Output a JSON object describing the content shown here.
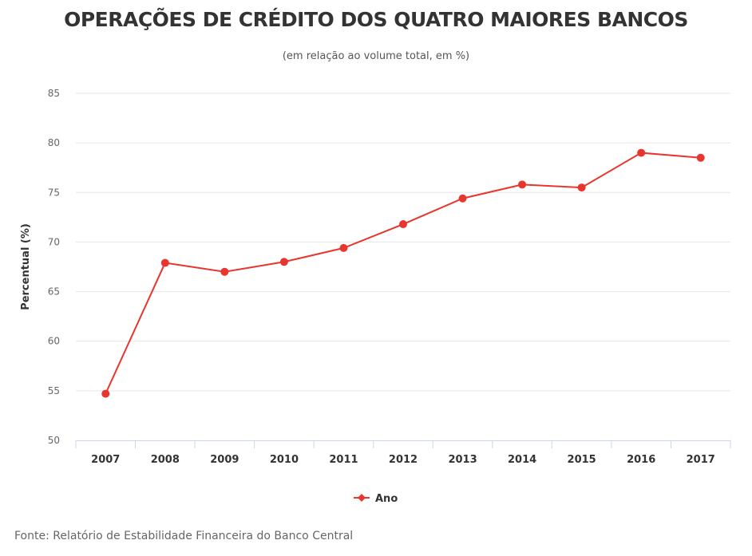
{
  "chart_data": {
    "type": "line",
    "title": "OPERAÇÕES DE CRÉDITO DOS QUATRO MAIORES BANCOS",
    "subtitle": "(em relação ao volume total, em %)",
    "xlabel": "",
    "ylabel": "Percentual (%)",
    "ylim": [
      50,
      85
    ],
    "yticks": [
      50,
      55,
      60,
      65,
      70,
      75,
      80,
      85
    ],
    "grid": true,
    "categories": [
      "2007",
      "2008",
      "2009",
      "2010",
      "2011",
      "2012",
      "2013",
      "2014",
      "2015",
      "2016",
      "2017"
    ],
    "series": [
      {
        "name": "Ano",
        "color": "#e8362e",
        "values": [
          54.7,
          67.9,
          67.0,
          68.0,
          69.4,
          71.8,
          74.4,
          75.8,
          75.5,
          79.0,
          78.5
        ]
      }
    ],
    "legend_position": "bottom-center",
    "source": "Fonte: Relatório de Estabilidade Financeira do Banco Central"
  }
}
